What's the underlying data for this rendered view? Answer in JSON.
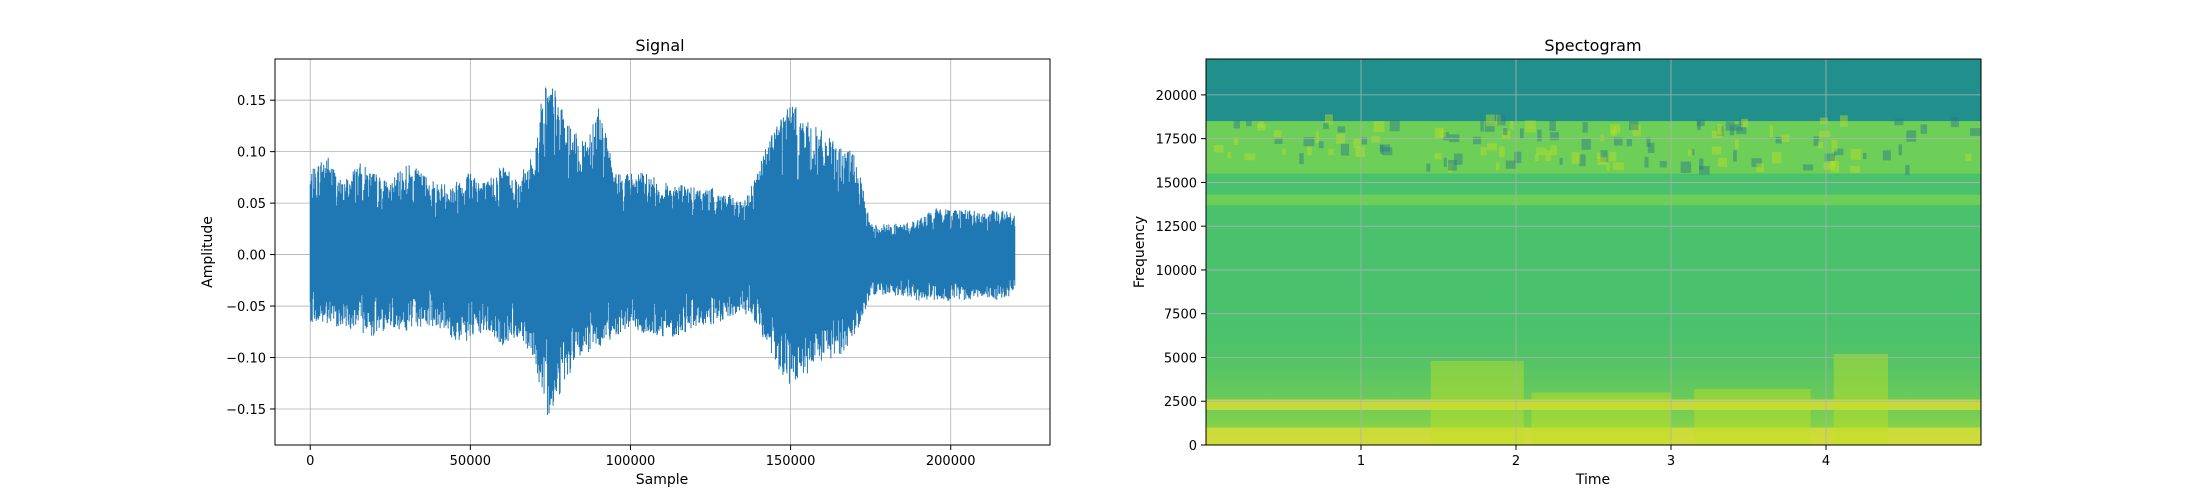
{
  "chart_data": [
    {
      "type": "line",
      "title": "Signal",
      "xlabel": "Sample",
      "ylabel": "Amplitude",
      "xlim": [
        -11000,
        231000
      ],
      "ylim": [
        -0.185,
        0.19
      ],
      "grid": true,
      "color": "#1f77b4",
      "xticks": [
        0,
        50000,
        100000,
        150000,
        200000
      ],
      "xtick_labels": [
        "0",
        "50000",
        "100000",
        "150000",
        "200000"
      ],
      "yticks": [
        -0.15,
        -0.1,
        -0.05,
        0.0,
        0.05,
        0.1,
        0.15
      ],
      "ytick_labels": [
        "−0.15",
        "−0.10",
        "−0.05",
        "0.00",
        "0.05",
        "0.10",
        "0.15"
      ],
      "series": [
        {
          "x": [
            0,
            5000,
            10000,
            15000,
            20000,
            25000,
            30000,
            35000,
            40000,
            45000,
            50000,
            55000,
            60000,
            65000,
            70000,
            73000,
            76000,
            80000,
            85000,
            90000,
            95000,
            100000,
            105000,
            110000,
            115000,
            120000,
            125000,
            130000,
            135000,
            140000,
            145000,
            150000,
            155000,
            160000,
            165000,
            170000,
            175000,
            180000,
            185000,
            190000,
            195000,
            200000,
            205000,
            210000,
            215000,
            220000
          ],
          "y_max": [
            0.08,
            0.1,
            0.07,
            0.09,
            0.08,
            0.07,
            0.09,
            0.08,
            0.07,
            0.07,
            0.085,
            0.07,
            0.09,
            0.075,
            0.1,
            0.17,
            0.165,
            0.13,
            0.11,
            0.15,
            0.08,
            0.08,
            0.08,
            0.07,
            0.07,
            0.065,
            0.065,
            0.06,
            0.05,
            0.085,
            0.13,
            0.15,
            0.13,
            0.12,
            0.105,
            0.1,
            0.03,
            0.03,
            0.03,
            0.035,
            0.045,
            0.045,
            0.045,
            0.04,
            0.045,
            0.04
          ],
          "y_min": [
            -0.065,
            -0.07,
            -0.07,
            -0.075,
            -0.08,
            -0.07,
            -0.075,
            -0.07,
            -0.07,
            -0.085,
            -0.085,
            -0.075,
            -0.09,
            -0.08,
            -0.1,
            -0.16,
            -0.15,
            -0.12,
            -0.1,
            -0.09,
            -0.08,
            -0.07,
            -0.08,
            -0.08,
            -0.08,
            -0.07,
            -0.07,
            -0.065,
            -0.055,
            -0.07,
            -0.11,
            -0.13,
            -0.12,
            -0.105,
            -0.1,
            -0.08,
            -0.04,
            -0.04,
            -0.04,
            -0.045,
            -0.045,
            -0.045,
            -0.045,
            -0.04,
            -0.045,
            -0.04
          ]
        }
      ]
    },
    {
      "type": "heatmap",
      "title": "Spectogram",
      "xlabel": "Time",
      "ylabel": "Frequency",
      "xlim": [
        0.0,
        5.0
      ],
      "ylim": [
        0,
        22050
      ],
      "grid": true,
      "colormap": "viridis",
      "xticks": [
        1,
        2,
        3,
        4
      ],
      "xtick_labels": [
        "1",
        "2",
        "3",
        "4"
      ],
      "yticks": [
        0,
        2500,
        5000,
        7500,
        10000,
        12500,
        15000,
        17500,
        20000
      ],
      "ytick_labels": [
        "0",
        "2500",
        "5000",
        "7500",
        "10000",
        "12500",
        "15000",
        "17500",
        "20000"
      ],
      "notable_bands": [
        {
          "freq_range": [
            18500,
            22050
          ],
          "level": "low",
          "color": "#21908d"
        },
        {
          "freq_range": [
            15500,
            18500
          ],
          "level": "medium-high",
          "color": "#7ad151"
        },
        {
          "freq_range": [
            13700,
            14300
          ],
          "level": "medium-high",
          "color": "#7ad151"
        },
        {
          "freq_range": [
            2000,
            2600
          ],
          "level": "high",
          "color": "#e1dd37"
        },
        {
          "freq_range": [
            0,
            1000
          ],
          "level": "high",
          "color": "#e1dd37"
        }
      ]
    }
  ]
}
